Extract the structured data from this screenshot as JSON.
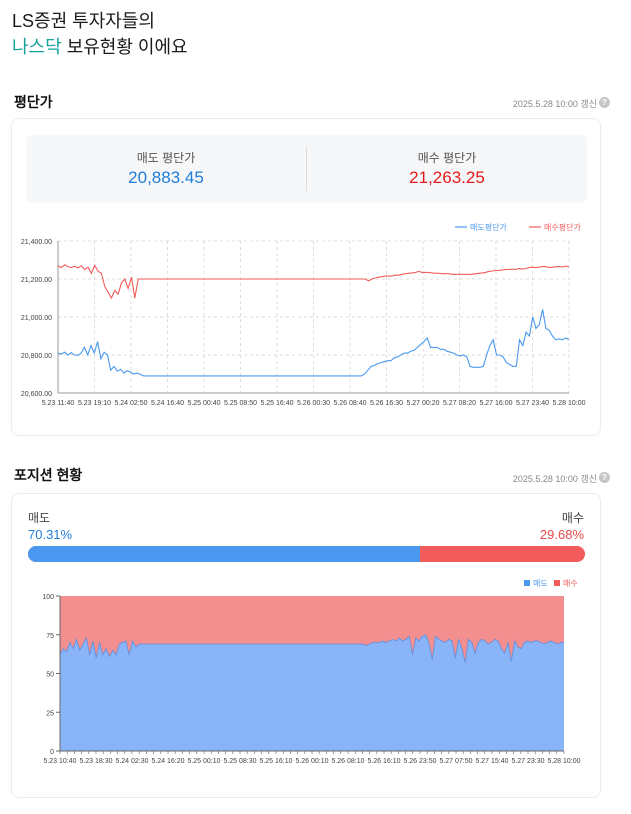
{
  "headline": {
    "line1": "LS증권 투자자들의",
    "symbol": "나스닥",
    "line2_rest": " 보유현황 이에요"
  },
  "avg_price": {
    "title": "평단가",
    "updated": "2025.5.28 10:00 갱신",
    "help": "?",
    "sell_label": "매도 평단가",
    "sell_value": "20,883.45",
    "buy_label": "매수 평단가",
    "buy_value": "21,263.25"
  },
  "position": {
    "title": "포지션 현황",
    "updated": "2025.5.28 10:00 갱신",
    "help": "?",
    "sell_label": "매도",
    "sell_pct": "70.31%",
    "sell_ratio": 0.7031,
    "buy_label": "매수",
    "buy_pct": "29.68%"
  },
  "colors": {
    "sell": "#4a98ef",
    "buy": "#f15b5b",
    "accent": "#14a39a"
  },
  "chart_data": [
    {
      "type": "line",
      "legend_position": "top-right",
      "grid": true,
      "ylim": [
        20600,
        21400
      ],
      "yticks": [
        "20,600.00",
        "20,800.00",
        "21,000.00",
        "21,200.00",
        "21,400.00"
      ],
      "ytick_values": [
        20600,
        20800,
        21000,
        21200,
        21400
      ],
      "xticks": [
        "5.23 11:40",
        "5.23 19:10",
        "5.24 02:50",
        "5.24 16:40",
        "5.25 00:40",
        "5.25 08:50",
        "5.25 16:40",
        "5.26 00:30",
        "5.26 08:40",
        "5.26 16:30",
        "5.27 00:20",
        "5.27 08:20",
        "5.27 16:00",
        "5.27 23:40",
        "5.28 10:00"
      ],
      "series": [
        {
          "name": "매도평단가",
          "color": "#4a98ef",
          "values": [
            20810,
            20805,
            20815,
            20800,
            20812,
            20800,
            20798,
            20810,
            20840,
            20800,
            20850,
            20810,
            20870,
            20780,
            20815,
            20800,
            20720,
            20740,
            20715,
            20725,
            20705,
            20718,
            20710,
            20700,
            20705,
            20698,
            20690,
            20690,
            20690,
            20690,
            20690,
            20690,
            20690,
            20690,
            20690,
            20690,
            20690,
            20690,
            20690,
            20690,
            20690,
            20690,
            20690,
            20690,
            20690,
            20690,
            20690,
            20690,
            20690,
            20690,
            20690,
            20690,
            20690,
            20690,
            20690,
            20690,
            20690,
            20690,
            20690,
            20690,
            20690,
            20690,
            20690,
            20690,
            20690,
            20690,
            20690,
            20690,
            20690,
            20690,
            20690,
            20690,
            20690,
            20690,
            20690,
            20690,
            20690,
            20690,
            20690,
            20690,
            20690,
            20690,
            20690,
            20690,
            20690,
            20690,
            20690,
            20690,
            20690,
            20690,
            20690,
            20690,
            20690,
            20700,
            20720,
            20740,
            20745,
            20755,
            20760,
            20765,
            20770,
            20770,
            20785,
            20790,
            20800,
            20810,
            20810,
            20820,
            20825,
            20840,
            20855,
            20870,
            20890,
            20840,
            20840,
            20840,
            20830,
            20830,
            20820,
            20815,
            20810,
            20800,
            20795,
            20800,
            20790,
            20740,
            20735,
            20735,
            20735,
            20740,
            20800,
            20850,
            20880,
            20800,
            20800,
            20790,
            20760,
            20750,
            20740,
            20740,
            20880,
            20850,
            20920,
            20900,
            21000,
            20940,
            20960,
            21040,
            20940,
            20930,
            20900,
            20880,
            20885,
            20880,
            20890,
            20880
          ]
        },
        {
          "name": "매수평단가",
          "color": "#f15b5b",
          "values": [
            21270,
            21260,
            21275,
            21265,
            21260,
            21268,
            21258,
            21270,
            21250,
            21262,
            21230,
            21272,
            21240,
            21230,
            21160,
            21130,
            21100,
            21140,
            21120,
            21180,
            21200,
            21150,
            21210,
            21100,
            21200,
            21200,
            21200,
            21200,
            21200,
            21200,
            21200,
            21200,
            21200,
            21200,
            21200,
            21200,
            21200,
            21200,
            21200,
            21200,
            21200,
            21200,
            21200,
            21200,
            21200,
            21200,
            21200,
            21200,
            21200,
            21200,
            21200,
            21200,
            21200,
            21200,
            21200,
            21200,
            21200,
            21200,
            21200,
            21200,
            21200,
            21200,
            21200,
            21200,
            21200,
            21200,
            21200,
            21200,
            21200,
            21200,
            21200,
            21200,
            21200,
            21200,
            21200,
            21200,
            21200,
            21200,
            21200,
            21200,
            21200,
            21200,
            21200,
            21200,
            21200,
            21200,
            21200,
            21200,
            21200,
            21200,
            21200,
            21200,
            21200,
            21190,
            21200,
            21205,
            21210,
            21212,
            21215,
            21215,
            21215,
            21220,
            21220,
            21225,
            21228,
            21230,
            21232,
            21235,
            21240,
            21235,
            21235,
            21235,
            21232,
            21230,
            21230,
            21228,
            21228,
            21228,
            21225,
            21225,
            21225,
            21225,
            21225,
            21225,
            21225,
            21228,
            21230,
            21232,
            21235,
            21240,
            21242,
            21245,
            21245,
            21248,
            21250,
            21250,
            21252,
            21250,
            21255,
            21252,
            21255,
            21260,
            21262,
            21260,
            21262,
            21265,
            21265,
            21260,
            21262,
            21264,
            21265,
            21263,
            21268,
            21263
          ]
        }
      ]
    },
    {
      "type": "area",
      "legend_position": "top-right",
      "grid": false,
      "ylim": [
        0,
        100
      ],
      "yticks": [
        "0",
        "25",
        "50",
        "75",
        "100"
      ],
      "ytick_values": [
        0,
        25,
        50,
        75,
        100
      ],
      "xticks": [
        "5.23 10:40",
        "5.23 18:30",
        "5.24 02:30",
        "5.24 16:20",
        "5.25 00:10",
        "5.25 08:30",
        "5.25 16:10",
        "5.26 00:10",
        "5.26 08:10",
        "5.26 16:10",
        "5.26 23:50",
        "5.27 07:50",
        "5.27 15:40",
        "5.27 23:30",
        "5.28 10:00"
      ],
      "series": [
        {
          "name": "매도",
          "color": "#8ab4f8",
          "values": [
            62,
            66,
            64,
            70,
            66,
            72,
            65,
            69,
            73,
            62,
            71,
            60,
            70,
            62,
            66,
            61,
            65,
            62,
            69,
            70,
            71,
            62,
            71,
            67,
            69,
            69,
            69,
            69,
            69,
            69,
            69,
            69,
            69,
            69,
            69,
            69,
            69,
            69,
            69,
            69,
            69,
            69,
            69,
            69,
            69,
            69,
            69,
            69,
            69,
            69,
            69,
            69,
            69,
            69,
            69,
            69,
            69,
            69,
            69,
            69,
            69,
            69,
            69,
            69,
            69,
            69,
            69,
            69,
            69,
            69,
            69,
            69,
            69,
            69,
            69,
            69,
            69,
            69,
            69,
            69,
            69,
            69,
            69,
            69,
            69,
            69,
            69,
            69,
            69,
            69,
            69,
            69,
            69,
            68,
            69,
            70,
            70,
            70,
            71,
            70,
            71,
            72,
            71,
            73,
            71,
            72,
            74,
            62,
            73,
            71,
            74,
            75,
            70,
            59,
            74,
            72,
            71,
            70,
            72,
            71,
            60,
            72,
            66,
            57,
            72,
            70,
            63,
            70,
            72,
            71,
            69,
            70,
            72,
            71,
            66,
            63,
            70,
            58,
            71,
            67,
            66,
            70,
            71,
            70,
            71,
            71,
            70,
            69,
            70,
            71,
            70,
            69,
            70,
            70
          ],
          "fill": "#8ab4f8",
          "stroke": "#5d8fe0"
        },
        {
          "name": "매수",
          "color": "#f38f8f"
        }
      ]
    }
  ]
}
